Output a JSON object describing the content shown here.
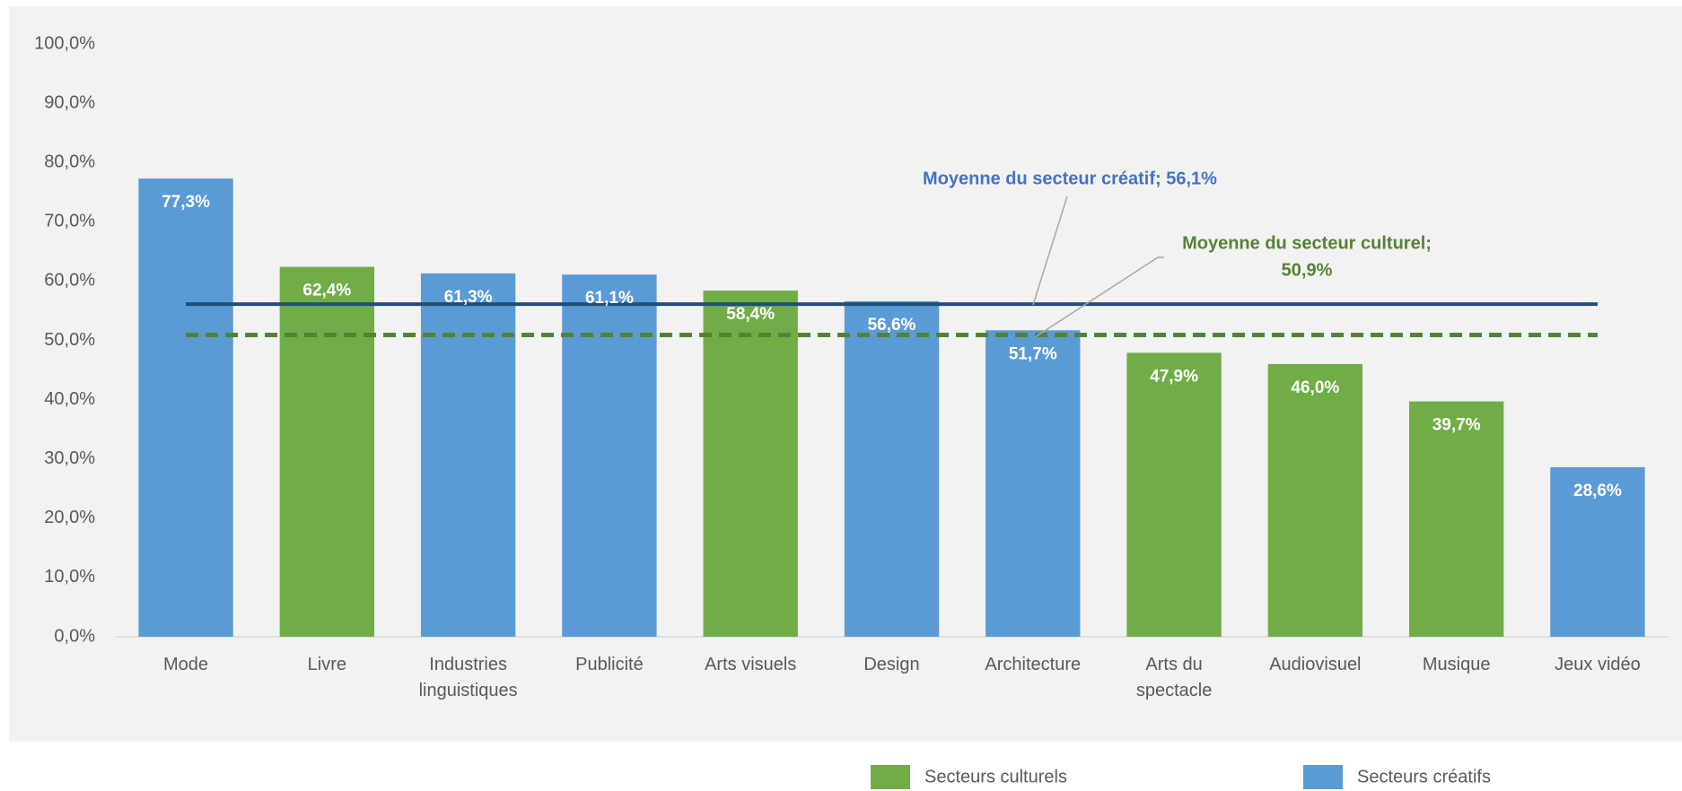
{
  "chart_data": {
    "type": "bar",
    "categories": [
      "Mode",
      "Livre",
      "Industries\nlinguistiques",
      "Publicité",
      "Arts visuels",
      "Design",
      "Architecture",
      "Arts du\nspectacle",
      "Audiovisuel",
      "Musique",
      "Jeux vidéo"
    ],
    "series": [
      {
        "name": "Secteurs culturels",
        "color": "#70ad47",
        "values": [
          null,
          62.4,
          null,
          null,
          58.4,
          null,
          null,
          47.9,
          46.0,
          39.7,
          null
        ],
        "value_labels": [
          null,
          "62,4%",
          null,
          null,
          "58,4%",
          null,
          null,
          "47,9%",
          "46,0%",
          "39,7%",
          null
        ]
      },
      {
        "name": "Secteurs créatifs",
        "color": "#5b9bd5",
        "values": [
          77.3,
          null,
          61.3,
          61.1,
          null,
          56.6,
          51.7,
          null,
          null,
          null,
          28.6
        ],
        "value_labels": [
          "77,3%",
          null,
          "61,3%",
          "61,1%",
          null,
          "56,6%",
          "51,7%",
          null,
          null,
          null,
          "28,6%"
        ]
      }
    ],
    "reference_lines": [
      {
        "label": [
          "Moyenne du secteur créatif; 56,1%"
        ],
        "value": 56.1,
        "color": "#1f4e79",
        "label_color": "#4472c4",
        "style": "solid"
      },
      {
        "label": [
          "Moyenne du secteur culturel;",
          "50,9%"
        ],
        "value": 50.9,
        "color": "#548235",
        "label_color": "#548235",
        "style": "dashed"
      }
    ],
    "ylim": [
      0,
      100
    ],
    "yticks": [
      {
        "value": 0,
        "label": "0,0%"
      },
      {
        "value": 10,
        "label": "10,0%"
      },
      {
        "value": 20,
        "label": "20,0%"
      },
      {
        "value": 30,
        "label": "30,0%"
      },
      {
        "value": 40,
        "label": "40,0%"
      },
      {
        "value": 50,
        "label": "50,0%"
      },
      {
        "value": 60,
        "label": "60,0%"
      },
      {
        "value": 70,
        "label": "70,0%"
      },
      {
        "value": 80,
        "label": "80,0%"
      },
      {
        "value": 90,
        "label": "90,0%"
      },
      {
        "value": 100,
        "label": "100,0%"
      }
    ],
    "grid": false,
    "legend": "bottom"
  }
}
